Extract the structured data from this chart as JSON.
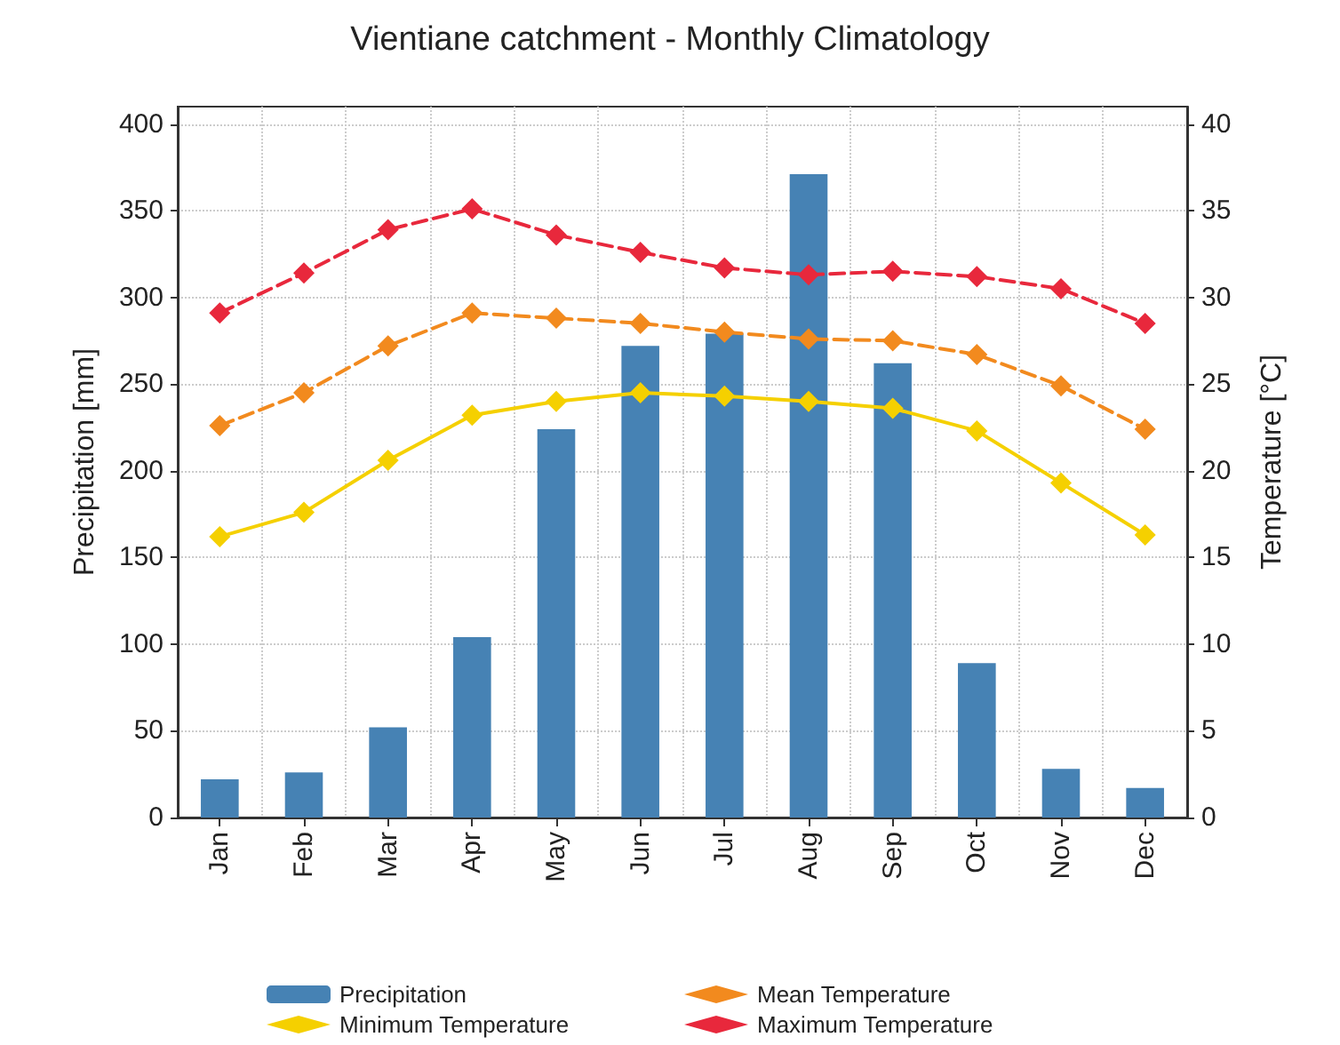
{
  "chart_data": {
    "type": "bar",
    "title": "Vientiane catchment - Monthly Climatology",
    "ylabel": "Precipitation [mm]",
    "y2label": "Temperature [°C]",
    "categories": [
      "Jan",
      "Feb",
      "Mar",
      "Apr",
      "May",
      "Jun",
      "Jul",
      "Aug",
      "Sep",
      "Oct",
      "Nov",
      "Dec"
    ],
    "series": [
      {
        "name": "Precipitation",
        "color": "#4682b4",
        "values": [
          22,
          26,
          52,
          104,
          224,
          272,
          279,
          371,
          262,
          89,
          28,
          17
        ]
      },
      {
        "name": "Mean Temperature",
        "type": "line",
        "axis": "y2",
        "color": "#f28a1e",
        "line_style": "dashed",
        "marker": "diamond",
        "values": [
          22.6,
          24.5,
          27.2,
          29.1,
          28.8,
          28.5,
          28.0,
          27.6,
          27.5,
          26.7,
          24.9,
          22.4
        ]
      },
      {
        "name": "Minimum Temperature",
        "type": "line",
        "axis": "y2",
        "color": "#f5d000",
        "line_style": "solid",
        "marker": "diamond",
        "values": [
          16.2,
          17.6,
          20.6,
          23.2,
          24.0,
          24.5,
          24.3,
          24.0,
          23.6,
          22.3,
          19.3,
          16.3
        ]
      },
      {
        "name": "Maximum Temperature",
        "type": "line",
        "axis": "y2",
        "color": "#e8283c",
        "line_style": "dashed",
        "marker": "diamond",
        "values": [
          29.1,
          31.4,
          33.9,
          35.1,
          33.6,
          32.6,
          31.7,
          31.3,
          31.5,
          31.2,
          30.5,
          28.5
        ]
      }
    ],
    "ylim": [
      0,
      410
    ],
    "yticks": [
      0,
      50,
      100,
      150,
      200,
      250,
      300,
      350,
      400
    ],
    "y2lim": [
      0,
      41
    ],
    "y2ticks": [
      0,
      5,
      10,
      15,
      20,
      25,
      30,
      35,
      40
    ],
    "grid": true,
    "legend": "bottom"
  }
}
